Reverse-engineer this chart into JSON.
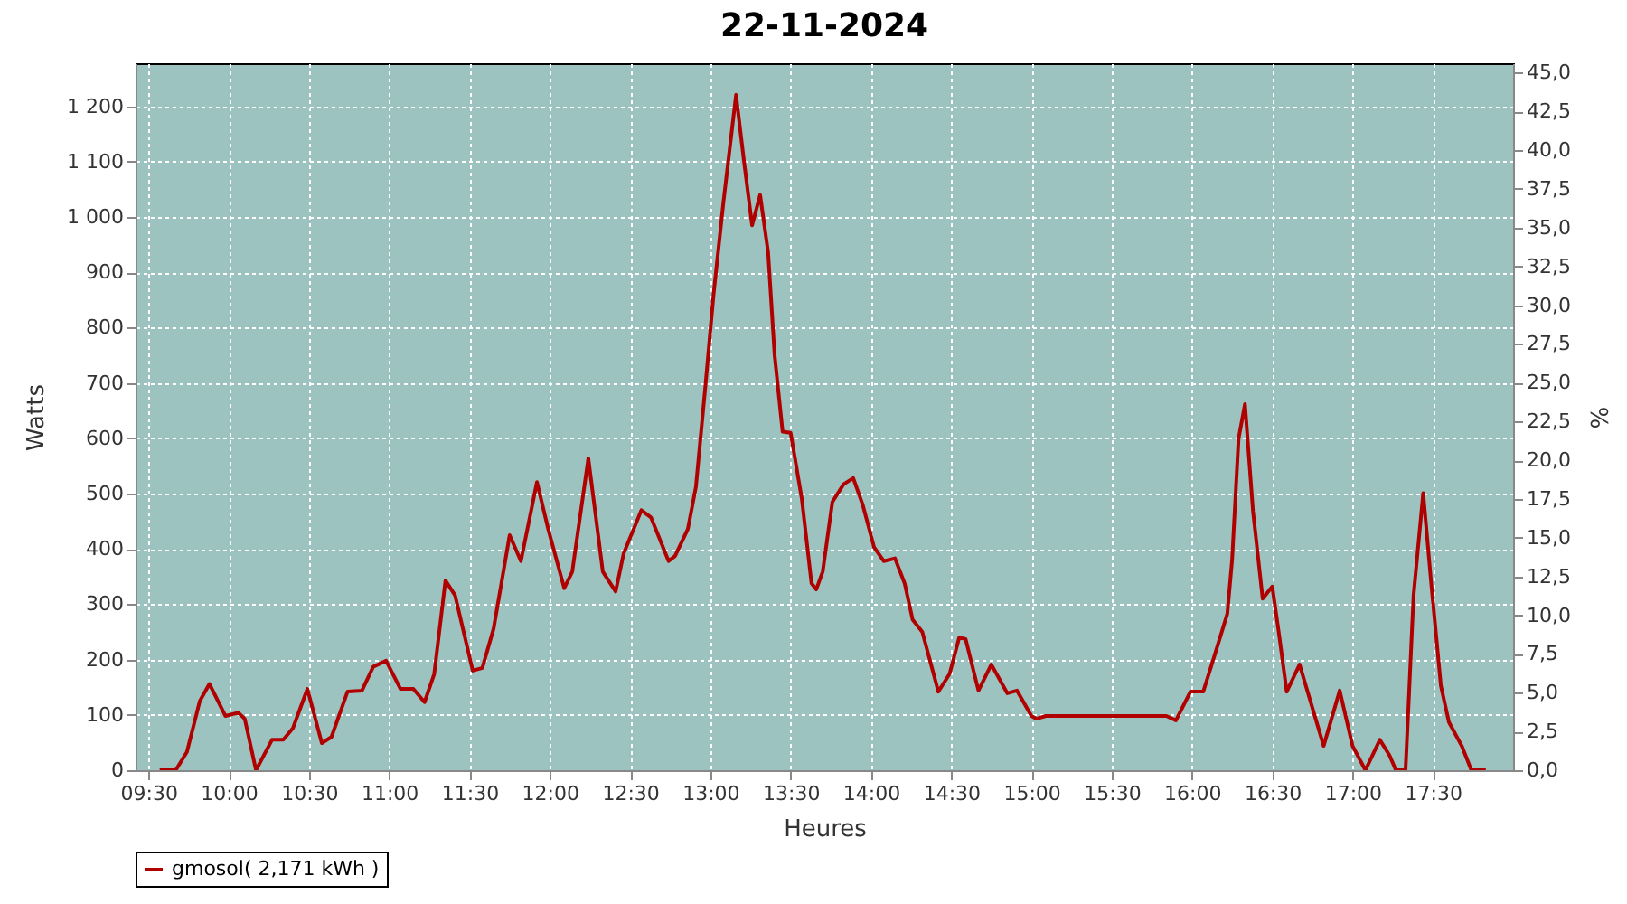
{
  "chart_data": {
    "type": "line",
    "title": "22-11-2024",
    "xlabel": "Heures",
    "ylabel": "Watts",
    "y2label": "%",
    "x": [
      9.57,
      9.67,
      9.74,
      9.82,
      9.88,
      9.98,
      10.06,
      10.1,
      10.17,
      10.27,
      10.34,
      10.4,
      10.49,
      10.58,
      10.64,
      10.74,
      10.83,
      10.9,
      10.98,
      11.07,
      11.15,
      11.22,
      11.28,
      11.35,
      11.41,
      11.52,
      11.58,
      11.65,
      11.75,
      11.82,
      11.92,
      11.99,
      12.09,
      12.14,
      12.24,
      12.33,
      12.41,
      12.46,
      12.57,
      12.63,
      12.74,
      12.78,
      12.86,
      12.91,
      12.97,
      13.02,
      13.08,
      13.16,
      13.21,
      13.26,
      13.31,
      13.36,
      13.4,
      13.45,
      13.5,
      13.57,
      13.63,
      13.66,
      13.7,
      13.76,
      13.83,
      13.89,
      13.95,
      14.02,
      14.08,
      14.15,
      14.21,
      14.26,
      14.32,
      14.42,
      14.49,
      14.55,
      14.59,
      14.67,
      14.75,
      14.85,
      14.91,
      15.0,
      15.03,
      15.09,
      15.84,
      15.9,
      15.99,
      16.07,
      16.14,
      16.22,
      16.25,
      16.29,
      16.33,
      16.38,
      16.44,
      16.5,
      16.54,
      16.59,
      16.67,
      16.72,
      16.82,
      16.92,
      17.0,
      17.08,
      17.17,
      17.23,
      17.27,
      17.33,
      17.38,
      17.44,
      17.49,
      17.55,
      17.6,
      17.68,
      17.74,
      17.83
    ],
    "series": [
      {
        "name": "gmosol( 2,171 kWh )",
        "color": "#b00000",
        "values": [
          0,
          0,
          33,
          125,
          156,
          98,
          104,
          93,
          0,
          55,
          55,
          76,
          147,
          49,
          60,
          142,
          144,
          187,
          198,
          147,
          147,
          123,
          174,
          343,
          316,
          180,
          185,
          256,
          425,
          378,
          521,
          436,
          329,
          359,
          564,
          359,
          323,
          392,
          470,
          457,
          378,
          387,
          436,
          512,
          697,
          860,
          1023,
          1221,
          1100,
          985,
          1040,
          936,
          751,
          612,
          610,
          490,
          338,
          327,
          359,
          485,
          517,
          528,
          479,
          403,
          378,
          383,
          338,
          272,
          250,
          142,
          174,
          240,
          237,
          144,
          191,
          139,
          144,
          98,
          93,
          98,
          98,
          90,
          142,
          142,
          207,
          283,
          381,
          599,
          662,
          468,
          310,
          332,
          250,
          142,
          191,
          142,
          44,
          144,
          44,
          0,
          55,
          27,
          0,
          0,
          316,
          501,
          338,
          153,
          87,
          44,
          0,
          0
        ]
      }
    ],
    "xlim": [
      9.42,
      18.0
    ],
    "xticks": [
      {
        "value": 9.5,
        "label": "09:30"
      },
      {
        "value": 10,
        "label": "10:00"
      },
      {
        "value": 10.5,
        "label": "10:30"
      },
      {
        "value": 11,
        "label": "11:00"
      },
      {
        "value": 11.5,
        "label": "11:30"
      },
      {
        "value": 12,
        "label": "12:00"
      },
      {
        "value": 12.5,
        "label": "12:30"
      },
      {
        "value": 13,
        "label": "13:00"
      },
      {
        "value": 13.5,
        "label": "13:30"
      },
      {
        "value": 14,
        "label": "14:00"
      },
      {
        "value": 14.5,
        "label": "14:30"
      },
      {
        "value": 15,
        "label": "15:00"
      },
      {
        "value": 15.5,
        "label": "15:30"
      },
      {
        "value": 16,
        "label": "16:00"
      },
      {
        "value": 16.5,
        "label": "16:30"
      },
      {
        "value": 17,
        "label": "17:00"
      },
      {
        "value": 17.5,
        "label": "17:30"
      }
    ],
    "ylim": [
      0,
      1278
    ],
    "yticks": [
      0,
      100,
      200,
      300,
      400,
      500,
      600,
      700,
      800,
      900,
      {
        "value": 1000,
        "label": "1 000"
      },
      {
        "value": 1100,
        "label": "1 100"
      },
      {
        "value": 1200,
        "label": "1 200"
      }
    ],
    "y2lim": [
      0,
      45.6
    ],
    "y2ticks": [
      {
        "value": 0,
        "label": "0,0"
      },
      {
        "value": 2.5,
        "label": "2,5"
      },
      {
        "value": 5,
        "label": "5,0"
      },
      {
        "value": 7.5,
        "label": "7,5"
      },
      {
        "value": 10,
        "label": "10,0"
      },
      {
        "value": 12.5,
        "label": "12,5"
      },
      {
        "value": 15,
        "label": "15,0"
      },
      {
        "value": 17.5,
        "label": "17,5"
      },
      {
        "value": 20,
        "label": "20,0"
      },
      {
        "value": 22.5,
        "label": "22,5"
      },
      {
        "value": 25,
        "label": "25,0"
      },
      {
        "value": 27.5,
        "label": "27,5"
      },
      {
        "value": 30,
        "label": "30,0"
      },
      {
        "value": 32.5,
        "label": "32,5"
      },
      {
        "value": 35,
        "label": "35,0"
      },
      {
        "value": 37.5,
        "label": "37,5"
      },
      {
        "value": 40,
        "label": "40,0"
      },
      {
        "value": 42.5,
        "label": "42,5"
      },
      {
        "value": 45,
        "label": "45,0"
      }
    ],
    "grid": true,
    "legend": "bottom"
  }
}
